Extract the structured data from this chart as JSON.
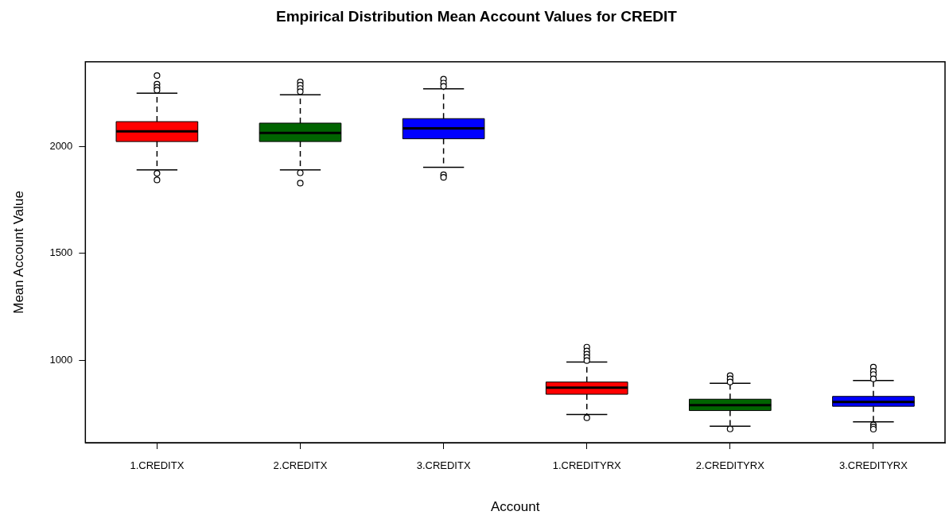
{
  "chart_data": {
    "type": "box",
    "title": "Empirical Distribution Mean Account Values for CREDIT",
    "xlabel": "Account",
    "ylabel": "Mean Account Value",
    "categories": [
      "1.CREDITX",
      "2.CREDITX",
      "3.CREDITX",
      "1.CREDITYRX",
      "2.CREDITYRX",
      "3.CREDITYRX"
    ],
    "colors": [
      "#ff0000",
      "#006400",
      "#0000ff",
      "#ff0000",
      "#006400",
      "#0000ff"
    ],
    "boxes": [
      {
        "low": 1890,
        "q1": 2022,
        "median": 2070,
        "q3": 2115,
        "high": 2248,
        "outliers": [
          2330,
          2290,
          2275,
          2262,
          1874,
          1843
        ]
      },
      {
        "low": 1890,
        "q1": 2022,
        "median": 2062,
        "q3": 2108,
        "high": 2240,
        "outliers": [
          2300,
          2285,
          2270,
          2255,
          1876,
          1828
        ]
      },
      {
        "low": 1902,
        "q1": 2035,
        "median": 2084,
        "q3": 2129,
        "high": 2268,
        "outliers": [
          2313,
          2295,
          2280,
          1867,
          1855
        ]
      },
      {
        "low": 749,
        "q1": 843,
        "median": 874,
        "q3": 900,
        "high": 993,
        "outliers": [
          1063,
          1045,
          1030,
          1015,
          1000,
          733
        ]
      },
      {
        "low": 694,
        "q1": 767,
        "median": 792,
        "q3": 820,
        "high": 894,
        "outliers": [
          930,
          915,
          900,
          681
        ]
      },
      {
        "low": 714,
        "q1": 787,
        "median": 807,
        "q3": 833,
        "high": 907,
        "outliers": [
          970,
          950,
          935,
          915,
          700,
          690,
          680
        ]
      }
    ],
    "ylim": [
      617,
      2394
    ],
    "yticks": [
      1000,
      1500,
      2000
    ],
    "grid": false,
    "legend": false
  }
}
